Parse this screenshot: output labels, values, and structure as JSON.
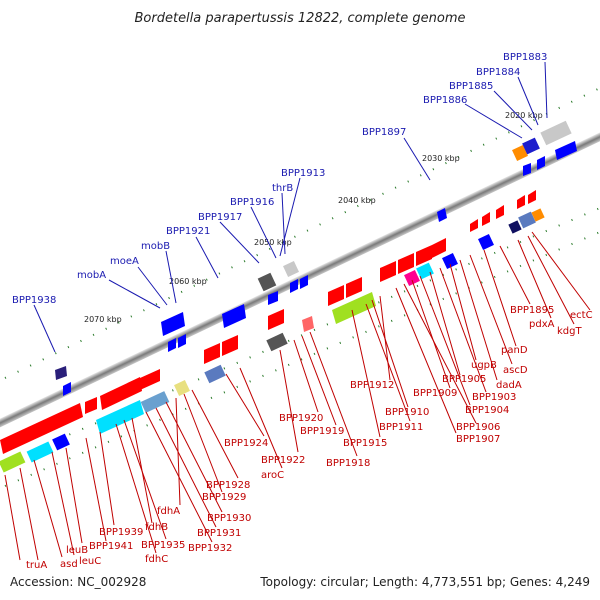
{
  "title": "Bordetella parapertussis 12822, complete genome",
  "footer": {
    "accession": "Accession: NC_002928",
    "summary": "Topology: circular; Length: 4,773,551 bp; Genes: 4,249"
  },
  "scale_labels": [
    "2020 kbp",
    "2030 kbp",
    "2040 kbp",
    "2050 kbp",
    "2060 kbp",
    "2070 kbp"
  ],
  "top_strand_genes": [
    "BPP1883",
    "BPP1884",
    "BPP1885",
    "BPP1886",
    "BPP1897",
    "BPP1913",
    "thrB",
    "BPP1916",
    "BPP1917",
    "BPP1921",
    "mobB",
    "moeA",
    "mobA",
    "BPP1938"
  ],
  "bottom_strand_genes": [
    "ectC",
    "kdgT",
    "pdxA",
    "BPP1895",
    "panD",
    "ascD",
    "dadA",
    "ugpB",
    "BPP1903",
    "BPP1905",
    "BPP1904",
    "BPP1906",
    "BPP1909",
    "BPP1907",
    "BPP1912",
    "BPP1910",
    "BPP1911",
    "BPP1915",
    "BPP1918",
    "BPP1919",
    "BPP1920",
    "BPP1922",
    "aroC",
    "BPP1924",
    "BPP1928",
    "BPP1929",
    "fdhA",
    "BPP1930",
    "BPP1931",
    "BPP1932",
    "fdhB",
    "BPP1935",
    "fdhC",
    "BPP1939",
    "BPP1941",
    "leuB",
    "leuC",
    "asd",
    "truA"
  ],
  "colors": {
    "top_label": "#1a1ab0",
    "bottom_label": "#c00000",
    "backbone": "#8a8a8a",
    "ticks": "#2a7a2a"
  }
}
